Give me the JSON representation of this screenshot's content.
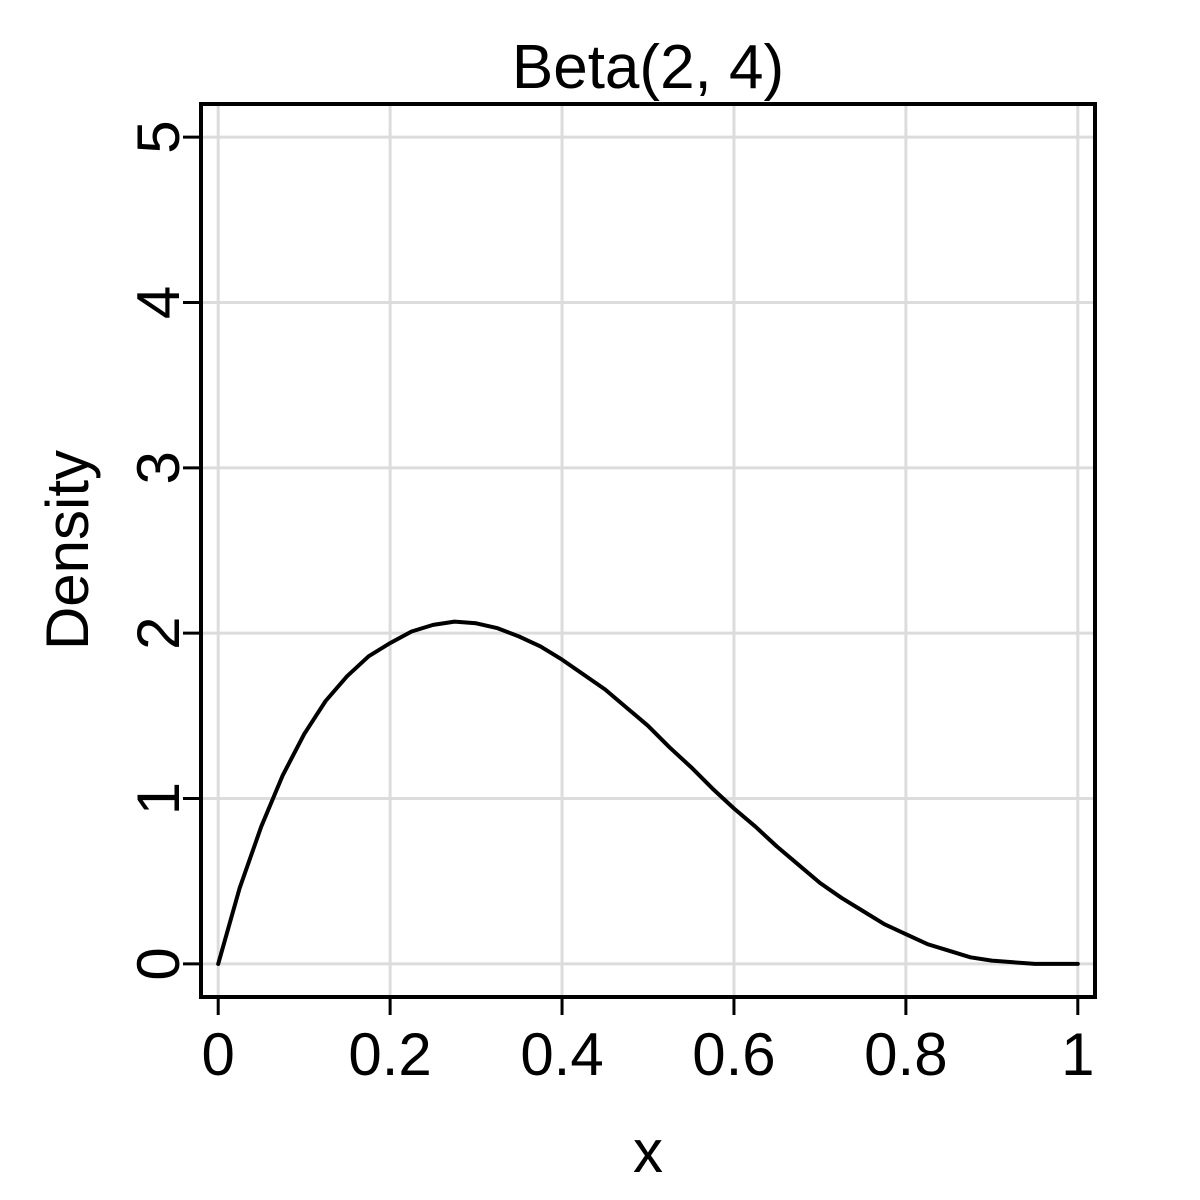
{
  "chart_data": {
    "type": "line",
    "title": "Beta(2, 4)",
    "xlabel": "x",
    "ylabel": "Density",
    "xlim": [
      -0.02,
      1.02
    ],
    "ylim": [
      -0.2,
      5.2
    ],
    "x_ticks": [
      0,
      0.2,
      0.4,
      0.6,
      0.8,
      1
    ],
    "x_tick_labels": [
      "0",
      "0.2",
      "0.4",
      "0.6",
      "0.8",
      "1"
    ],
    "y_ticks": [
      0,
      1,
      2,
      3,
      4,
      5
    ],
    "y_tick_labels": [
      "0",
      "1",
      "2",
      "3",
      "4",
      "5"
    ],
    "grid": true,
    "series": [
      {
        "color": "#000000",
        "x": [
          0,
          0.025,
          0.05,
          0.075,
          0.1,
          0.125,
          0.15,
          0.175,
          0.2,
          0.225,
          0.25,
          0.275,
          0.3,
          0.325,
          0.35,
          0.375,
          0.4,
          0.425,
          0.45,
          0.475,
          0.5,
          0.525,
          0.55,
          0.575,
          0.6,
          0.625,
          0.65,
          0.675,
          0.7,
          0.725,
          0.75,
          0.775,
          0.8,
          0.825,
          0.85,
          0.875,
          0.9,
          0.925,
          0.95,
          0.975,
          1
        ],
        "y": [
          0,
          0.46,
          0.83,
          1.14,
          1.39,
          1.59,
          1.74,
          1.86,
          1.94,
          2.01,
          2.05,
          2.07,
          2.06,
          2.03,
          1.98,
          1.92,
          1.84,
          1.75,
          1.66,
          1.55,
          1.44,
          1.31,
          1.19,
          1.06,
          0.94,
          0.83,
          0.71,
          0.6,
          0.49,
          0.4,
          0.32,
          0.24,
          0.18,
          0.12,
          0.08,
          0.04,
          0.02,
          0.01,
          0.0,
          0.0,
          0
        ]
      }
    ]
  }
}
